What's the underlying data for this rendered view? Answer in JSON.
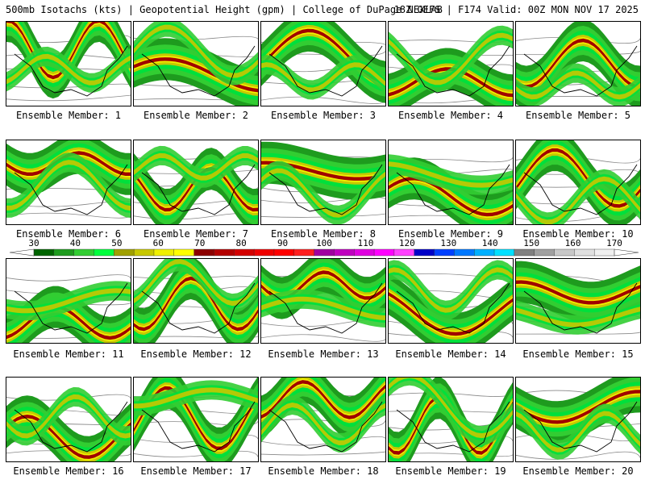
{
  "header": {
    "title_left": "500mb Isotachs (kts) | Geopotential Height (gpm) | College of DuPage NEXLAB",
    "title_right": "18Z GEFS | F174 Valid: 00Z MON NOV 17 2025"
  },
  "colorbar": {
    "labels": [
      "30",
      "40",
      "50",
      "60",
      "70",
      "80",
      "90",
      "100",
      "110",
      "120",
      "130",
      "140",
      "150",
      "160",
      "170"
    ],
    "colors": [
      "#006400",
      "#1e9b1e",
      "#32cd32",
      "#00ff3c",
      "#a0a000",
      "#c8c800",
      "#f0f000",
      "#ffff00",
      "#8c0000",
      "#b40000",
      "#d40000",
      "#f00000",
      "#ff0000",
      "#ff2020",
      "#a000a0",
      "#c000c0",
      "#e000e0",
      "#ff00ff",
      "#ff40ff",
      "#0000c8",
      "#0040ff",
      "#0078ff",
      "#00b0ff",
      "#00e0ff",
      "#808080",
      "#a0a0a0",
      "#c8c8c8",
      "#e0e0e0",
      "#f0f0f0"
    ]
  },
  "members": [
    {
      "label": "Ensemble Member: 1"
    },
    {
      "label": "Ensemble Member: 2"
    },
    {
      "label": "Ensemble Member: 3"
    },
    {
      "label": "Ensemble Member: 4"
    },
    {
      "label": "Ensemble Member: 5"
    },
    {
      "label": "Ensemble Member: 6"
    },
    {
      "label": "Ensemble Member: 7"
    },
    {
      "label": "Ensemble Member: 8"
    },
    {
      "label": "Ensemble Member: 9"
    },
    {
      "label": "Ensemble Member: 10"
    },
    {
      "label": "Ensemble Member: 11"
    },
    {
      "label": "Ensemble Member: 12"
    },
    {
      "label": "Ensemble Member: 13"
    },
    {
      "label": "Ensemble Member: 14"
    },
    {
      "label": "Ensemble Member: 15"
    },
    {
      "label": "Ensemble Member: 16"
    },
    {
      "label": "Ensemble Member: 17"
    },
    {
      "label": "Ensemble Member: 18"
    },
    {
      "label": "Ensemble Member: 19"
    },
    {
      "label": "Ensemble Member: 20"
    }
  ]
}
